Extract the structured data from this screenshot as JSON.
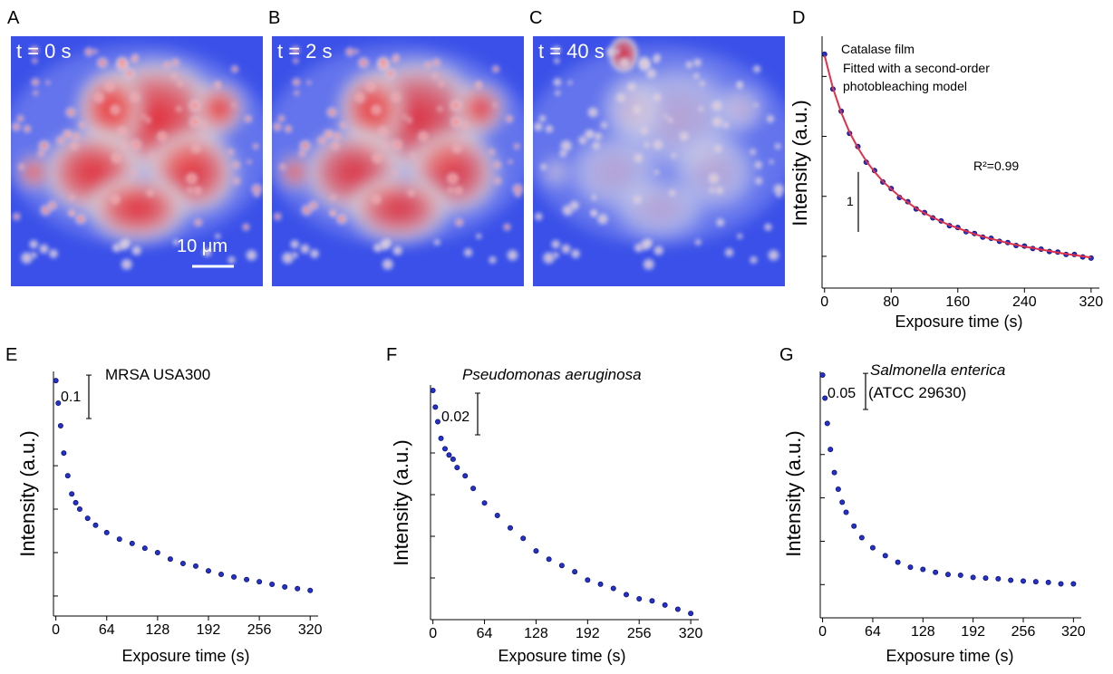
{
  "images": [
    {
      "panel": "A",
      "label": "t = 0 s",
      "scale_bar": "10 μm"
    },
    {
      "panel": "B",
      "label": "t = 2 s"
    },
    {
      "panel": "C",
      "label": "t = 40 s"
    }
  ],
  "chart_data": [
    {
      "type": "scatter",
      "panel": "D",
      "xlabel": "Exposure time (s)",
      "ylabel": "Intensity (a.u.)",
      "annotations": [
        "Catalase film",
        "Fitted with a second-order",
        "photobleaching model",
        "R²=0.99"
      ],
      "scale_bar": 1,
      "x": [
        0,
        10,
        20,
        30,
        40,
        50,
        60,
        70,
        80,
        90,
        100,
        110,
        120,
        130,
        140,
        150,
        160,
        170,
        180,
        190,
        200,
        210,
        220,
        230,
        240,
        250,
        260,
        270,
        280,
        290,
        300,
        310,
        320
      ],
      "series": [
        {
          "color": "#2233cc",
          "values": [
            4.37,
            3.79,
            3.42,
            3.05,
            2.83,
            2.57,
            2.43,
            2.24,
            2.13,
            1.98,
            1.91,
            1.79,
            1.73,
            1.64,
            1.59,
            1.51,
            1.48,
            1.41,
            1.38,
            1.32,
            1.3,
            1.25,
            1.23,
            1.18,
            1.17,
            1.13,
            1.12,
            1.08,
            1.07,
            1.03,
            1.03,
            0.99,
            0.97
          ]
        },
        {
          "color": "#e0304a",
          "mode": "line",
          "values": [
            4.35,
            3.81,
            3.4,
            3.07,
            2.81,
            2.59,
            2.41,
            2.25,
            2.12,
            2.0,
            1.9,
            1.8,
            1.72,
            1.65,
            1.58,
            1.52,
            1.47,
            1.42,
            1.37,
            1.33,
            1.29,
            1.26,
            1.22,
            1.19,
            1.16,
            1.14,
            1.11,
            1.09,
            1.06,
            1.04,
            1.02,
            1.0,
            0.98
          ]
        }
      ],
      "xlim": [
        -3,
        330
      ],
      "xticks": [
        0,
        80,
        160,
        240,
        320
      ],
      "ylim": [
        0.47,
        4.67
      ],
      "yticks": [
        1,
        2,
        3,
        4
      ]
    },
    {
      "type": "scatter",
      "panel": "E",
      "xlabel": "Exposure time (s)",
      "ylabel": "Intensity (a.u.)",
      "annotations": [
        "MRSA USA300"
      ],
      "scale_bar": 0.1,
      "x": [
        0,
        3,
        6,
        10,
        15,
        20,
        25,
        30,
        40,
        50,
        64,
        80,
        96,
        112,
        128,
        144,
        160,
        176,
        192,
        208,
        224,
        240,
        256,
        272,
        288,
        304,
        320
      ],
      "series": [
        {
          "color": "#2233cc",
          "values": [
            0.596,
            0.544,
            0.492,
            0.429,
            0.377,
            0.335,
            0.315,
            0.3,
            0.279,
            0.263,
            0.246,
            0.231,
            0.221,
            0.21,
            0.2,
            0.185,
            0.175,
            0.169,
            0.158,
            0.15,
            0.144,
            0.138,
            0.133,
            0.127,
            0.121,
            0.117,
            0.113
          ]
        }
      ],
      "xlim": [
        -3,
        330
      ],
      "xticks": [
        0,
        64,
        128,
        192,
        256,
        320
      ],
      "ylim": [
        0.054,
        0.617
      ],
      "yticks": [
        0.1,
        0.2,
        0.3,
        0.4
      ]
    },
    {
      "type": "scatter",
      "panel": "F",
      "xlabel": "Exposure time (s)",
      "ylabel": "Intensity (a.u.)",
      "annotations": [
        "Pseudomonas aeruginosa"
      ],
      "scale_bar": 0.02,
      "x": [
        0,
        3,
        6,
        10,
        15,
        20,
        25,
        30,
        40,
        50,
        64,
        80,
        96,
        112,
        128,
        144,
        160,
        176,
        192,
        208,
        224,
        240,
        256,
        272,
        288,
        304,
        320
      ],
      "series": [
        {
          "color": "#2233cc",
          "values": [
            0.11,
            0.102,
            0.095,
            0.087,
            0.082,
            0.079,
            0.077,
            0.073,
            0.069,
            0.063,
            0.056,
            0.05,
            0.044,
            0.039,
            0.033,
            0.029,
            0.026,
            0.023,
            0.019,
            0.017,
            0.015,
            0.012,
            0.01,
            0.009,
            0.007,
            0.005,
            0.003
          ]
        }
      ],
      "xlim": [
        -3,
        330
      ],
      "xticks": [
        0,
        64,
        128,
        192,
        256,
        320
      ],
      "ylim": [
        0,
        0.1126
      ],
      "yticks": [
        0.02,
        0.04,
        0.06,
        0.08
      ]
    },
    {
      "type": "scatter",
      "panel": "G",
      "xlabel": "Exposure time (s)",
      "ylabel": "Intensity (a.u.)",
      "annotations": [
        "Salmonella enterica",
        "(ATCC 29630)"
      ],
      "scale_bar": 0.05,
      "x": [
        0,
        3,
        6,
        10,
        15,
        20,
        25,
        30,
        40,
        50,
        64,
        80,
        96,
        112,
        128,
        144,
        160,
        176,
        192,
        208,
        224,
        240,
        256,
        272,
        288,
        304,
        320
      ],
      "series": [
        {
          "color": "#2233cc",
          "values": [
            0.35,
            0.318,
            0.283,
            0.247,
            0.215,
            0.192,
            0.174,
            0.16,
            0.141,
            0.125,
            0.111,
            0.1,
            0.091,
            0.084,
            0.081,
            0.077,
            0.074,
            0.073,
            0.07,
            0.069,
            0.068,
            0.066,
            0.065,
            0.064,
            0.063,
            0.061,
            0.061
          ]
        }
      ],
      "xlim": [
        -3,
        330
      ],
      "xticks": [
        0,
        64,
        128,
        192,
        256,
        320
      ],
      "ylim": [
        0.014,
        0.355
      ],
      "yticks": [
        0.06,
        0.12,
        0.18,
        0.24
      ]
    }
  ]
}
